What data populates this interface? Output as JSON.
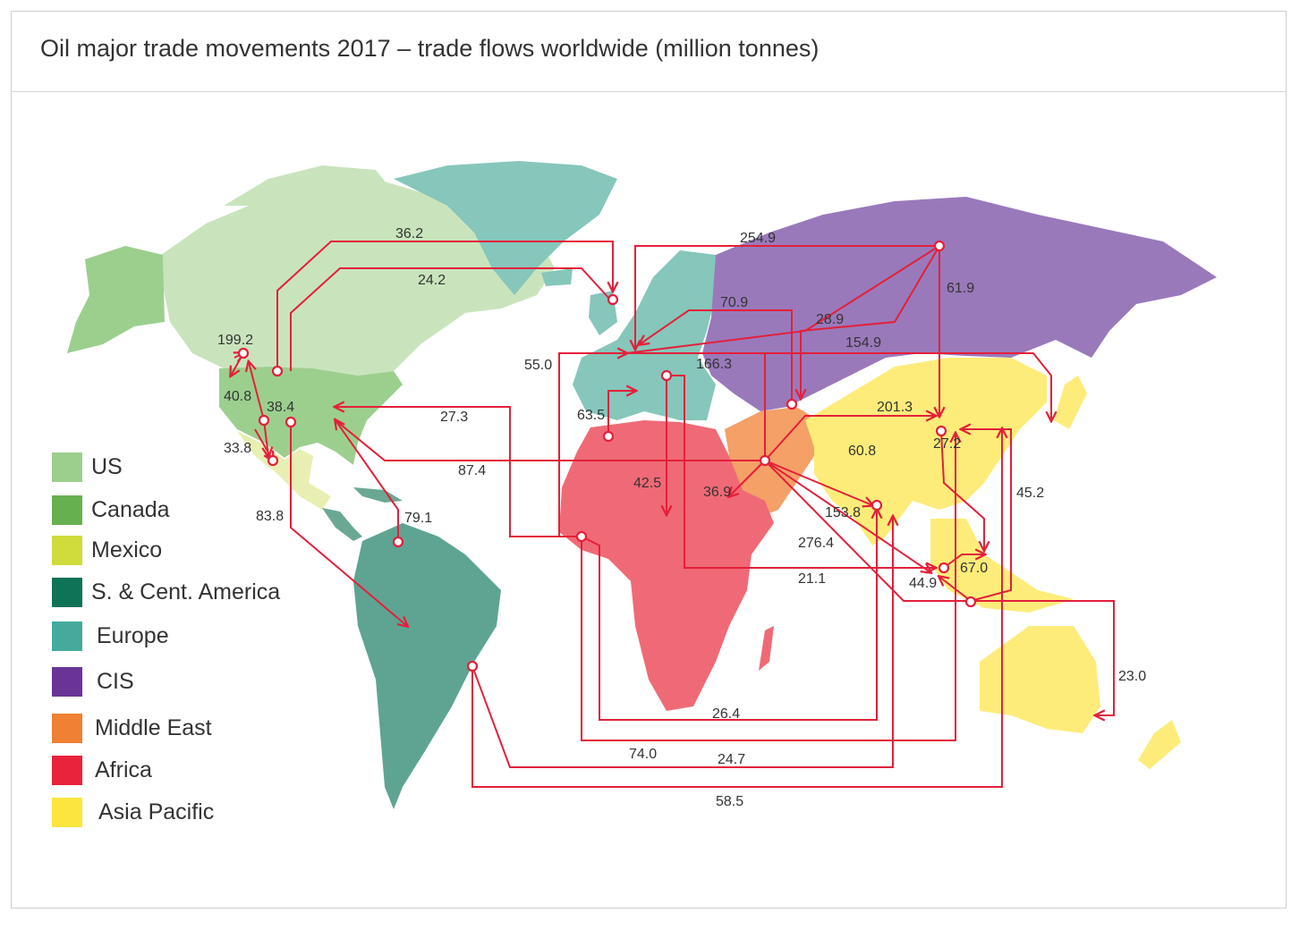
{
  "title": "Oil major trade movements 2017 – trade flows worldwide (million tonnes)",
  "legend": [
    {
      "label": "US",
      "color": "#9ccf8e"
    },
    {
      "label": "Canada",
      "color": "#66b04f"
    },
    {
      "label": "Mexico",
      "color": "#cfdc3c"
    },
    {
      "label": "S. & Cent. America",
      "color": "#0f7358"
    },
    {
      "label": "Europe",
      "color": "#44aa9c"
    },
    {
      "label": "CIS",
      "color": "#6a3497"
    },
    {
      "label": "Middle East",
      "color": "#f08033"
    },
    {
      "label": "Africa",
      "color": "#e8233a"
    },
    {
      "label": "Asia Pacific",
      "color": "#fce53e"
    }
  ],
  "flow_color": "#e3203a",
  "flow_labels": [
    "36.2",
    "24.2",
    "254.9",
    "61.9",
    "70.9",
    "28.9",
    "154.9",
    "166.3",
    "55.0",
    "199.2",
    "40.8",
    "38.4",
    "33.8",
    "27.3",
    "87.4",
    "63.5",
    "42.5",
    "36.9",
    "201.3",
    "27.2",
    "60.8",
    "45.2",
    "83.8",
    "79.1",
    "153.8",
    "276.4",
    "21.1",
    "67.0",
    "44.9",
    "23.0",
    "26.4",
    "74.0",
    "24.7",
    "58.5"
  ]
}
